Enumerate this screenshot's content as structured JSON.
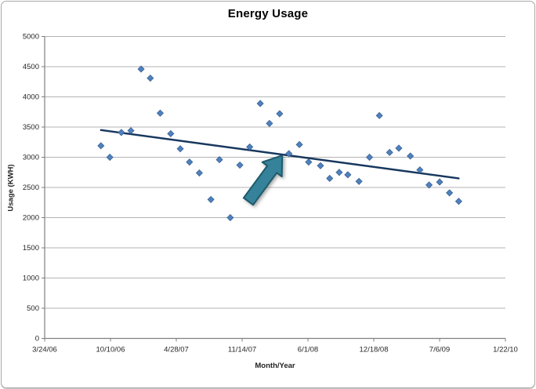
{
  "window": {
    "background": "#ffffff",
    "frame_border_color": "#a9a9a9"
  },
  "chart_data": {
    "type": "scatter",
    "title": "Energy Usage",
    "xlabel": "Month/Year",
    "ylabel": "Usage (KWH)",
    "grid": "horizontal",
    "legend": "none",
    "colors": {
      "gridline": "#b3b3b3",
      "axis": "#7f7f7f",
      "tick_text": "#262626"
    },
    "x_axis": {
      "tick_labels": [
        "3/24/06",
        "10/10/06",
        "4/28/07",
        "11/14/07",
        "6/1/08",
        "12/18/08",
        "7/6/09",
        "1/22/10"
      ],
      "tick_interval_days": 200,
      "range_days": [
        0,
        1400
      ]
    },
    "y_axis": {
      "min": 0,
      "max": 5000,
      "step": 500,
      "tick_labels": [
        "0",
        "500",
        "1000",
        "1500",
        "2000",
        "2500",
        "3000",
        "3500",
        "4000",
        "4500",
        "5000"
      ]
    },
    "series": [
      {
        "name": "Usage (KWH)",
        "marker": "diamond",
        "marker_color": "#4f81bd",
        "marker_edge": "#3c6396",
        "points": [
          {
            "date": "9/11/06",
            "day": 171,
            "kwh": 3190
          },
          {
            "date": "10/8/06",
            "day": 198,
            "kwh": 3000
          },
          {
            "date": "11/12/06",
            "day": 233,
            "kwh": 3410
          },
          {
            "date": "12/11/06",
            "day": 262,
            "kwh": 3440
          },
          {
            "date": "1/11/07",
            "day": 293,
            "kwh": 4460
          },
          {
            "date": "2/8/07",
            "day": 321,
            "kwh": 4310
          },
          {
            "date": "3/10/07",
            "day": 351,
            "kwh": 3730
          },
          {
            "date": "4/11/07",
            "day": 383,
            "kwh": 3390
          },
          {
            "date": "5/10/07",
            "day": 412,
            "kwh": 3140
          },
          {
            "date": "6/7/07",
            "day": 440,
            "kwh": 2920
          },
          {
            "date": "7/7/07",
            "day": 470,
            "kwh": 2740
          },
          {
            "date": "8/11/07",
            "day": 505,
            "kwh": 2300
          },
          {
            "date": "9/6/07",
            "day": 531,
            "kwh": 2960
          },
          {
            "date": "10/9/07",
            "day": 564,
            "kwh": 2000
          },
          {
            "date": "11/7/07",
            "day": 593,
            "kwh": 2870
          },
          {
            "date": "12/7/07",
            "day": 623,
            "kwh": 3170
          },
          {
            "date": "1/8/08",
            "day": 655,
            "kwh": 3890
          },
          {
            "date": "2/5/08",
            "day": 683,
            "kwh": 3560
          },
          {
            "date": "3/7/08",
            "day": 714,
            "kwh": 3720
          },
          {
            "date": "4/4/08",
            "day": 742,
            "kwh": 3060
          },
          {
            "date": "5/6/08",
            "day": 774,
            "kwh": 3210
          },
          {
            "date": "6/3/08",
            "day": 802,
            "kwh": 2920
          },
          {
            "date": "7/9/08",
            "day": 838,
            "kwh": 2860
          },
          {
            "date": "8/6/08",
            "day": 866,
            "kwh": 2650
          },
          {
            "date": "9/4/08",
            "day": 895,
            "kwh": 2750
          },
          {
            "date": "9/30/08",
            "day": 921,
            "kwh": 2710
          },
          {
            "date": "11/3/08",
            "day": 955,
            "kwh": 2600
          },
          {
            "date": "12/5/08",
            "day": 987,
            "kwh": 3000
          },
          {
            "date": "1/4/09",
            "day": 1017,
            "kwh": 3690
          },
          {
            "date": "2/4/09",
            "day": 1048,
            "kwh": 3080
          },
          {
            "date": "3/4/09",
            "day": 1076,
            "kwh": 3150
          },
          {
            "date": "4/8/09",
            "day": 1111,
            "kwh": 3020
          },
          {
            "date": "5/7/09",
            "day": 1140,
            "kwh": 2790
          },
          {
            "date": "6/4/09",
            "day": 1168,
            "kwh": 2540
          },
          {
            "date": "7/6/09",
            "day": 1200,
            "kwh": 2590
          },
          {
            "date": "8/5/09",
            "day": 1230,
            "kwh": 2410
          },
          {
            "date": "9/2/09",
            "day": 1258,
            "kwh": 2270
          }
        ]
      }
    ],
    "trendline": {
      "color": "#17375e",
      "width": 2.4,
      "start": {
        "day": 171,
        "kwh": 3450
      },
      "end": {
        "day": 1258,
        "kwh": 2650
      }
    },
    "annotation_arrow": {
      "shape": "block-arrow-up-right",
      "fill": "#35829a",
      "stroke": "#1d5a6b",
      "tail": {
        "day": 619,
        "kwh": 2270
      },
      "tip": {
        "day": 722,
        "kwh": 3030
      }
    }
  }
}
